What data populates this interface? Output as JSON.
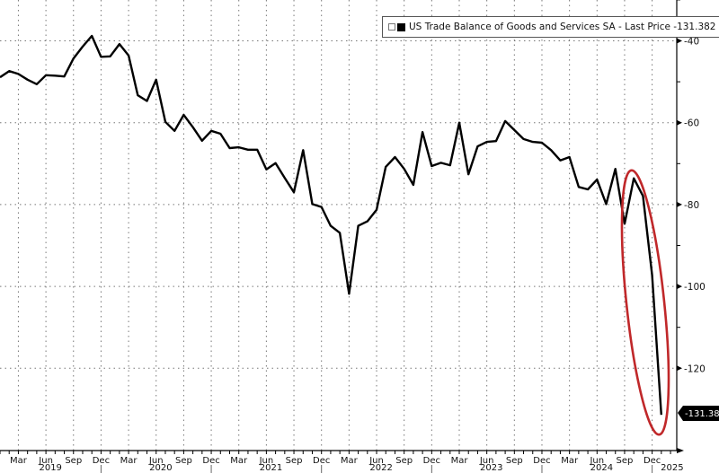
{
  "chart_data": {
    "type": "line",
    "title": "",
    "xlabel": "",
    "ylabel": "",
    "legend": {
      "label": "US Trade Balance of Goods and Services SA - Last Price -131.382",
      "placement": "top-right"
    },
    "last_value_label": "-131.382",
    "ylim": [
      -136,
      -35
    ],
    "yticks": [
      -40,
      -60,
      -80,
      -100,
      -120
    ],
    "ytick_labels": [
      "-40",
      "-60",
      "-80",
      "-100",
      "-120"
    ],
    "x_start": "2019-01",
    "x_end": "2025-01",
    "x_month_labels": [
      "Mar",
      "Jun",
      "Sep",
      "Dec"
    ],
    "x_year_labels": [
      "2019",
      "2020",
      "2021",
      "2022",
      "2023",
      "2024",
      "2025"
    ],
    "grid": true,
    "series_color": "#000000",
    "highlight_color": "#c0282a",
    "series": [
      {
        "name": "US Trade Balance of Goods and Services SA",
        "values": [
          -48.9,
          -47.4,
          -48.1,
          -49.5,
          -50.6,
          -48.4,
          -48.5,
          -48.7,
          -44.3,
          -41.4,
          -38.8,
          -43.9,
          -43.8,
          -40.8,
          -43.6,
          -53.3,
          -54.7,
          -49.5,
          -59.8,
          -62.0,
          -58.1,
          -61.1,
          -64.4,
          -62.0,
          -62.7,
          -66.2,
          -66.0,
          -66.6,
          -66.6,
          -71.4,
          -69.9,
          -73.5,
          -77.0,
          -66.7,
          -79.9,
          -80.6,
          -85.2,
          -86.9,
          -101.8,
          -85.2,
          -84.1,
          -81.3,
          -70.8,
          -68.4,
          -71.3,
          -75.2,
          -62.3,
          -70.6,
          -69.8,
          -70.4,
          -60.0,
          -72.6,
          -65.8,
          -64.7,
          -64.5,
          -59.6,
          -61.8,
          -64.0,
          -64.7,
          -64.9,
          -66.7,
          -69.2,
          -68.4,
          -75.7,
          -76.3,
          -73.9,
          -79.9,
          -71.3,
          -84.7,
          -73.6,
          -77.9,
          -97.3,
          -131.382
        ]
      }
    ]
  }
}
